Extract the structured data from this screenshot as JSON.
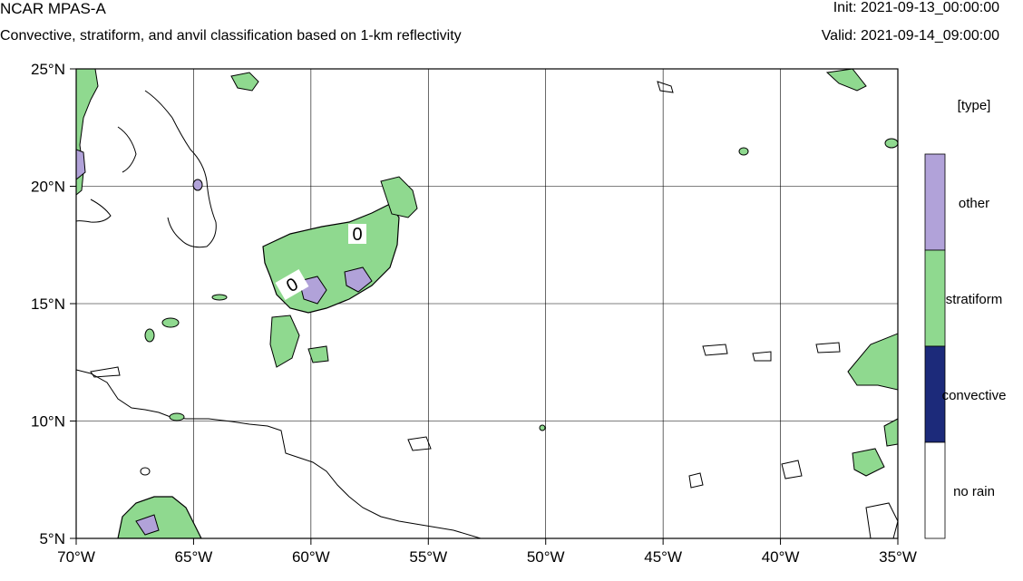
{
  "header": {
    "title": "NCAR MPAS-A",
    "subtitle": "Convective, stratiform, and anvil classification based on 1-km reflectivity",
    "init": "Init: 2021-09-13_00:00:00",
    "valid": "Valid: 2021-09-14_09:00:00"
  },
  "axes": {
    "lon_labels": [
      "70°W",
      "65°W",
      "60°W",
      "55°W",
      "50°W",
      "45°W",
      "40°W",
      "35°W"
    ],
    "lat_labels": [
      "25°N",
      "20°N",
      "15°N",
      "10°N",
      "5°N"
    ],
    "lon_range": [
      -70,
      -35
    ],
    "lat_range": [
      5,
      25
    ],
    "grid": true
  },
  "contour_labels": [
    "0",
    "0"
  ],
  "legend": {
    "title": "[type]",
    "items": [
      {
        "label": "other",
        "color": "#b1a2d9"
      },
      {
        "label": "stratiform",
        "color": "#8fd98f"
      },
      {
        "label": "convective",
        "color": "#1c2a7a"
      },
      {
        "label": "no rain",
        "color": "#ffffff"
      }
    ]
  },
  "colors": {
    "other": "#b1a2d9",
    "stratiform": "#8fd98f",
    "convective": "#1c2a7a",
    "grid": "#000000"
  }
}
